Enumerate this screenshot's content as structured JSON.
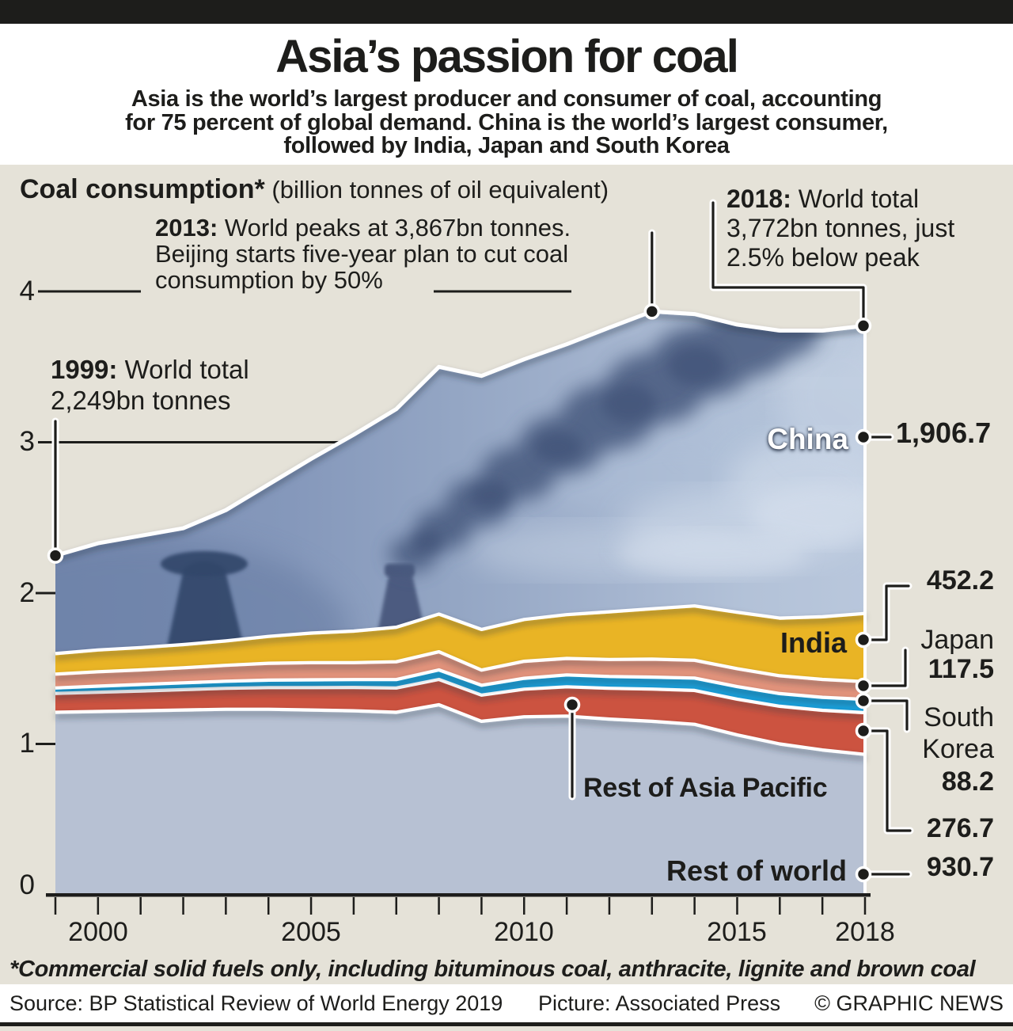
{
  "masthead": {
    "top_bar_color": "#1d1d1b",
    "title": "Asia’s passion for coal",
    "subtitle_lines": [
      "Asia is the world’s largest producer and consumer of coal, accounting",
      "for 75 percent of global demand. China is the world’s largest consumer,",
      "followed by India, Japan and South Korea"
    ]
  },
  "figure": {
    "background_color": "#e5e2d8",
    "heading": {
      "bold": "Coal consumption*",
      "rest": " (billion tonnes of oil equivalent)"
    },
    "y_axis": {
      "labels": [
        "4",
        "3",
        "2",
        "1",
        "0"
      ]
    },
    "x_axis": {
      "labels": [
        "2000",
        "2005",
        "2010",
        "2015",
        "2018"
      ]
    },
    "annotations": {
      "a1999": {
        "year": "1999:",
        "line1": " World total",
        "line2": "2,249bn tonnes"
      },
      "a2013": {
        "year": "2013:",
        "line1": " World peaks at 3,867bn tonnes.",
        "line2": "Beijing starts five-year plan to cut coal",
        "line3": "consumption by 50%"
      },
      "a2018": {
        "year": "2018:",
        "line1": " World total",
        "line2": "3,772bn tonnes, just",
        "line3": "2.5% below peak"
      }
    },
    "series_labels": {
      "china": {
        "label": "China",
        "value": "1,906.7"
      },
      "india": {
        "label": "India",
        "value": "452.2"
      },
      "japan": {
        "label": "Japan",
        "value": "117.5"
      },
      "south_korea": {
        "line1": "South",
        "line2": "Korea",
        "value": "88.2"
      },
      "rest_asia_pacific": {
        "label": "Rest of Asia Pacific",
        "value": "276.7"
      },
      "rest_world": {
        "label": "Rest of world",
        "value": "930.7"
      }
    },
    "footnote": "*Commercial solid fuels only, including bituminous coal, anthracite, lignite and brown coal"
  },
  "chart_data": {
    "type": "area",
    "stacked": true,
    "title": "Coal consumption (billion tonnes of oil equivalent)",
    "unit_note": "values in thousandths of a billion tonnes of oil equivalent",
    "x": [
      1999,
      2000,
      2001,
      2002,
      2003,
      2004,
      2005,
      2006,
      2007,
      2008,
      2009,
      2010,
      2011,
      2012,
      2013,
      2014,
      2015,
      2016,
      2017,
      2018
    ],
    "ylim": [
      0,
      4
    ],
    "y_ticks": [
      0,
      1,
      2,
      3,
      4
    ],
    "x_tick_years": [
      2000,
      2005,
      2010,
      2015,
      2018
    ],
    "grid": "partial dashes at 4 and 3",
    "legend_position": "labels on chart, values at right edge",
    "series": [
      {
        "name": "Rest of world",
        "color": "#b7c1d3",
        "values": [
          1210,
          1215,
          1220,
          1225,
          1230,
          1230,
          1225,
          1220,
          1210,
          1260,
          1150,
          1180,
          1185,
          1165,
          1150,
          1130,
          1060,
          1000,
          960,
          930.7
        ]
      },
      {
        "name": "Rest of Asia Pacific",
        "color": "#cc5340",
        "values": [
          125,
          128,
          131,
          135,
          139,
          144,
          149,
          155,
          161,
          168,
          174,
          183,
          194,
          204,
          214,
          225,
          237,
          250,
          263,
          276.7
        ]
      },
      {
        "name": "South Korea",
        "color": "#1aa3de",
        "values": [
          36,
          40,
          43,
          45,
          47,
          49,
          51,
          52,
          56,
          63,
          65,
          72,
          79,
          78,
          79,
          82,
          83,
          84,
          86,
          88.2
        ]
      },
      {
        "name": "Japan",
        "color": "#e2937b",
        "values": [
          92,
          96,
          97,
          100,
          105,
          112,
          114,
          112,
          118,
          120,
          101,
          113,
          109,
          113,
          119,
          118,
          119,
          118,
          119,
          117.5
        ]
      },
      {
        "name": "India",
        "color": "#e9b425",
        "values": [
          136,
          144,
          148,
          154,
          162,
          178,
          196,
          209,
          229,
          250,
          269,
          277,
          290,
          316,
          334,
          360,
          374,
          382,
          415,
          452.2
        ]
      },
      {
        "name": "China",
        "color": "#8b9cbe",
        "values": [
          650,
          707,
          741,
          771,
          867,
          1007,
          1155,
          1302,
          1446,
          1639,
          1681,
          1725,
          1793,
          1884,
          1971,
          1935,
          1907,
          1906,
          1897,
          1906.7
        ]
      }
    ],
    "world_total_1999": 2249,
    "world_peak_2013": 3867,
    "world_total_2018": 3772
  },
  "footer": {
    "source": "Source: BP Statistical Review of World Energy 2019",
    "picture": "Picture: Associated Press",
    "copyright": "© GRAPHIC NEWS"
  }
}
